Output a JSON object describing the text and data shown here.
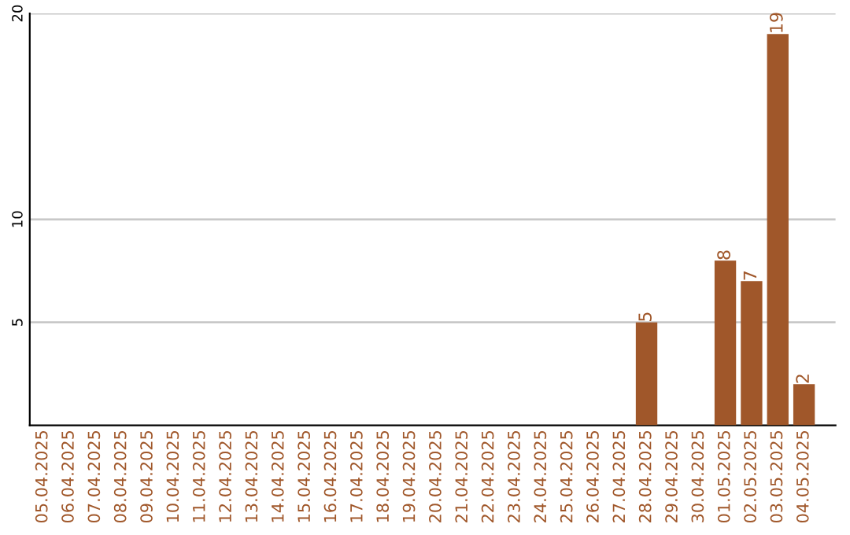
{
  "chart_data": {
    "type": "bar",
    "categories": [
      "05.04.2025",
      "06.04.2025",
      "07.04.2025",
      "08.04.2025",
      "09.04.2025",
      "10.04.2025",
      "11.04.2025",
      "12.04.2025",
      "13.04.2025",
      "14.04.2025",
      "15.04.2025",
      "16.04.2025",
      "17.04.2025",
      "18.04.2025",
      "19.04.2025",
      "20.04.2025",
      "21.04.2025",
      "22.04.2025",
      "23.04.2025",
      "24.04.2025",
      "25.04.2025",
      "26.04.2025",
      "27.04.2025",
      "28.04.2025",
      "29.04.2025",
      "30.04.2025",
      "01.05.2025",
      "02.05.2025",
      "03.05.2025",
      "04.05.2025"
    ],
    "values": [
      0,
      0,
      0,
      0,
      0,
      0,
      0,
      0,
      0,
      0,
      0,
      0,
      0,
      0,
      0,
      0,
      0,
      0,
      0,
      0,
      0,
      0,
      0,
      5,
      0,
      0,
      8,
      7,
      19,
      2
    ],
    "value_labels": [
      null,
      null,
      null,
      null,
      null,
      null,
      null,
      null,
      null,
      null,
      null,
      null,
      null,
      null,
      null,
      null,
      null,
      null,
      null,
      null,
      null,
      null,
      null,
      "5",
      null,
      null,
      "8",
      "7",
      "19",
      "2"
    ],
    "color": "#a0572a",
    "ylim": [
      0,
      20
    ],
    "yticks": [
      5,
      10,
      20
    ],
    "grid": "y"
  }
}
